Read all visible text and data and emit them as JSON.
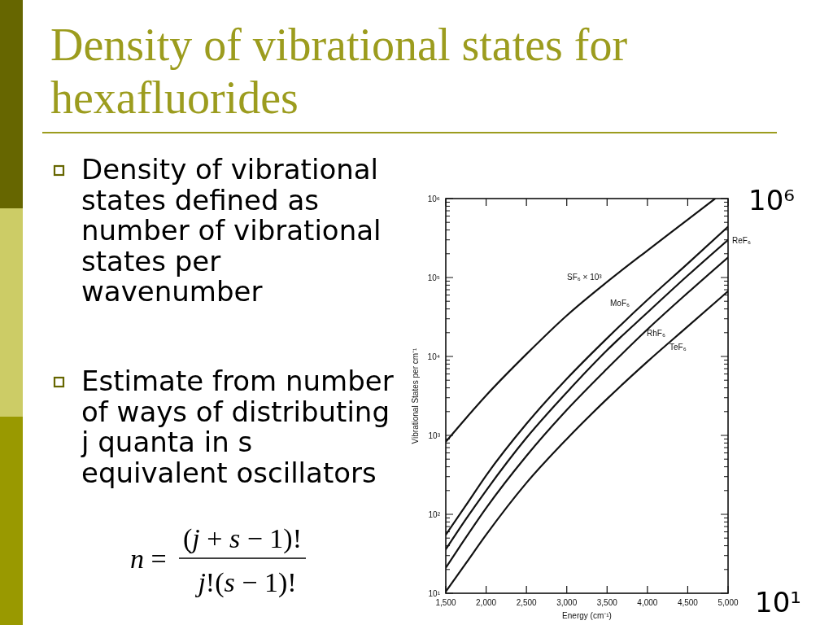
{
  "chart_data": {
    "type": "line",
    "title": "Density of vibrational states for hexafluorides",
    "xlabel": "Energy (cm⁻¹)",
    "ylabel": "Vibrational States per cm⁻¹",
    "log": "y",
    "x": [
      1500,
      1750,
      2000,
      2500,
      3000,
      3500,
      4000,
      4500,
      5000
    ],
    "xlim": [
      1500,
      5000
    ],
    "xticks": [
      {
        "value": 1500,
        "label": "1,500"
      },
      {
        "value": 2000,
        "label": "2,000"
      },
      {
        "value": 2500,
        "label": "2,500"
      },
      {
        "value": 3000,
        "label": "3,000"
      },
      {
        "value": 3500,
        "label": "3,500"
      },
      {
        "value": 4000,
        "label": "4,000"
      },
      {
        "value": 4500,
        "label": "4,500"
      },
      {
        "value": 5000,
        "label": "5,000"
      }
    ],
    "ylim": [
      10,
      1000000
    ],
    "yticks": [
      {
        "value": 10,
        "label": "10¹"
      },
      {
        "value": 20,
        "label": null
      },
      {
        "value": 30,
        "label": null
      },
      {
        "value": 40,
        "label": null
      },
      {
        "value": 50,
        "label": null
      },
      {
        "value": 60,
        "label": null
      },
      {
        "value": 70,
        "label": null
      },
      {
        "value": 80,
        "label": null
      },
      {
        "value": 90,
        "label": null
      },
      {
        "value": 100,
        "label": "10²"
      },
      {
        "value": 200,
        "label": null
      },
      {
        "value": 300,
        "label": null
      },
      {
        "value": 400,
        "label": null
      },
      {
        "value": 500,
        "label": null
      },
      {
        "value": 600,
        "label": null
      },
      {
        "value": 700,
        "label": null
      },
      {
        "value": 800,
        "label": null
      },
      {
        "value": 900,
        "label": null
      },
      {
        "value": 1000,
        "label": "10³"
      },
      {
        "value": 2000,
        "label": null
      },
      {
        "value": 3000,
        "label": null
      },
      {
        "value": 4000,
        "label": null
      },
      {
        "value": 5000,
        "label": null
      },
      {
        "value": 6000,
        "label": null
      },
      {
        "value": 7000,
        "label": null
      },
      {
        "value": 8000,
        "label": null
      },
      {
        "value": 9000,
        "label": null
      },
      {
        "value": 10000,
        "label": "10⁴"
      },
      {
        "value": 20000,
        "label": null
      },
      {
        "value": 30000,
        "label": null
      },
      {
        "value": 40000,
        "label": null
      },
      {
        "value": 50000,
        "label": null
      },
      {
        "value": 60000,
        "label": null
      },
      {
        "value": 70000,
        "label": null
      },
      {
        "value": 80000,
        "label": null
      },
      {
        "value": 90000,
        "label": null
      },
      {
        "value": 100000,
        "label": "10⁵"
      },
      {
        "value": 200000,
        "label": null
      },
      {
        "value": 300000,
        "label": null
      },
      {
        "value": 400000,
        "label": null
      },
      {
        "value": 500000,
        "label": null
      },
      {
        "value": 600000,
        "label": null
      },
      {
        "value": 700000,
        "label": null
      },
      {
        "value": 800000,
        "label": null
      },
      {
        "value": 900000,
        "label": null
      },
      {
        "value": 1000000,
        "label": "10⁶"
      }
    ],
    "series": [
      {
        "name": "SF₆ × 10³",
        "color": "#111111",
        "x": [
          1500,
          1750,
          2000,
          2500,
          3000,
          3500,
          4000,
          4500,
          4840
        ],
        "values": [
          830,
          1650,
          3200,
          10700,
          33000,
          88000,
          220000,
          540000,
          1000000
        ]
      },
      {
        "name": "MoF₆",
        "color": "#111111",
        "values": [
          55,
          130,
          310,
          1400,
          5200,
          17000,
          52000,
          150000,
          440000
        ]
      },
      {
        "name": "ReF₆",
        "color": "#111111",
        "values": [
          36,
          87,
          200,
          930,
          3500,
          12000,
          36000,
          106000,
          300000
        ]
      },
      {
        "name": "RhF₆",
        "color": "#111111",
        "values": [
          21,
          51,
          120,
          550,
          2100,
          7000,
          22000,
          64000,
          180000
        ]
      },
      {
        "name": "TeF₆",
        "color": "#111111",
        "values": [
          10.5,
          24,
          55,
          250,
          900,
          2900,
          8600,
          24000,
          67000
        ]
      }
    ],
    "annotations": [
      "Density of vibrational\nstates defined as\nnumber of vibrational\nstates per\nwavenumber",
      "Estimate from number\nof ways of distributing\nj quanta in s\nequivalent oscillators",
      "n =",
      "(j + s − 1)!",
      "j!(s − 1)!",
      "10⁶",
      "10¹"
    ]
  }
}
